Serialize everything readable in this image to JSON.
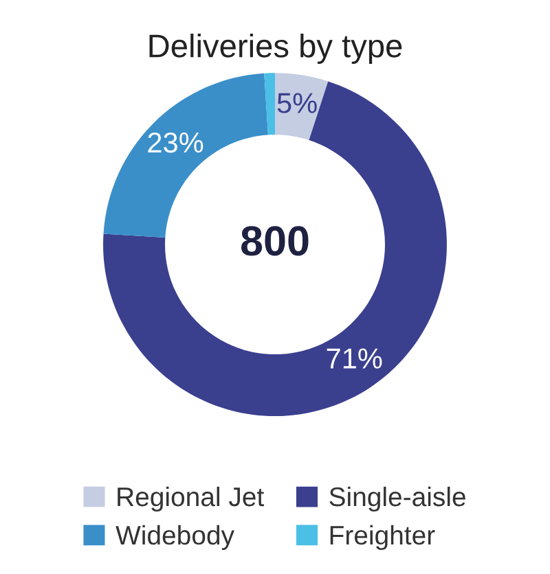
{
  "chart_data": {
    "type": "donut",
    "title": "Deliveries by type",
    "categories": [
      "Regional Jet",
      "Single-aisle",
      "Widebody",
      "Freighter"
    ],
    "values": [
      5,
      71,
      23,
      1
    ],
    "colors": [
      "#c5cde2",
      "#3a3f8e",
      "#3a8fc9",
      "#4bbfe6"
    ],
    "value_labels": [
      "5%",
      "71%",
      "23%",
      null
    ],
    "annotations": [
      "800"
    ],
    "legend": "bottom"
  }
}
